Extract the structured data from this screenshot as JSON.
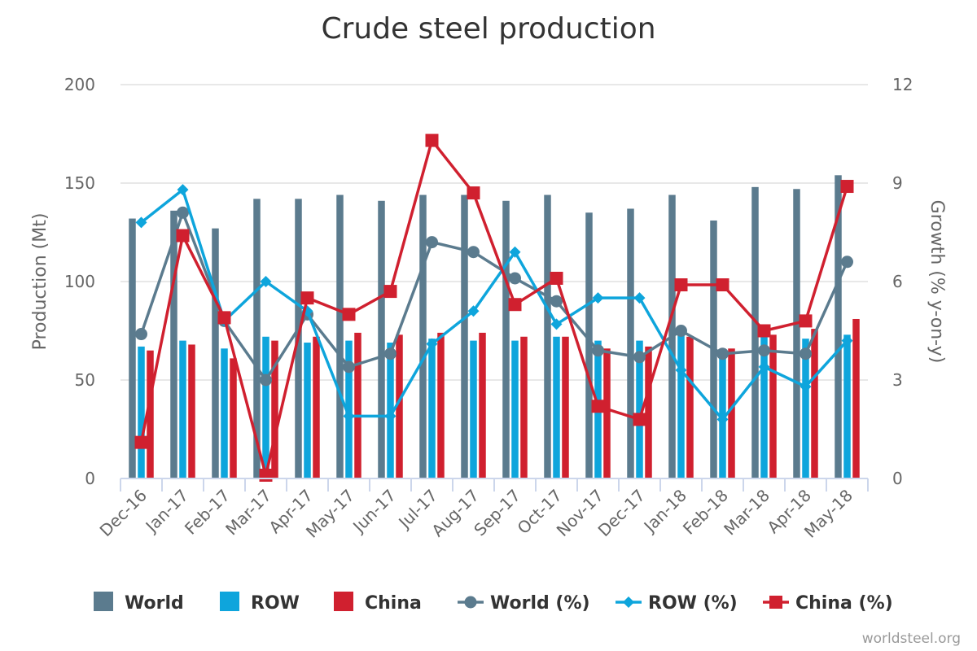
{
  "chart_data": {
    "type": "bar",
    "title": "Crude steel production",
    "categories": [
      "Dec-16",
      "Jan-17",
      "Feb-17",
      "Mar-17",
      "Apr-17",
      "May-17",
      "Jun-17",
      "Jul-17",
      "Aug-17",
      "Sep-17",
      "Oct-17",
      "Nov-17",
      "Dec-17",
      "Jan-18",
      "Feb-18",
      "Mar-18",
      "Apr-18",
      "May-18"
    ],
    "ylabel": "Production (Mt)",
    "y2label": "Growth (% y-on-y)",
    "ylim": [
      0,
      200
    ],
    "y2lim": [
      0,
      12
    ],
    "yticks": [
      "0",
      "50",
      "100",
      "150",
      "200"
    ],
    "y2ticks": [
      "0",
      "3",
      "6",
      "9",
      "12"
    ],
    "grid": true,
    "legend_position": "bottom",
    "series": [
      {
        "name": "World",
        "kind": "bar",
        "axis": "left",
        "color": "#5b7b8e",
        "values": [
          132,
          136,
          127,
          142,
          142,
          144,
          141,
          144,
          144,
          141,
          144,
          135,
          137,
          144,
          131,
          148,
          147,
          154
        ]
      },
      {
        "name": "ROW",
        "kind": "bar",
        "axis": "left",
        "color": "#0ea5dc",
        "values": [
          67,
          70,
          66,
          72,
          69,
          70,
          69,
          71,
          70,
          70,
          72,
          70,
          70,
          73,
          64,
          72,
          71,
          73
        ]
      },
      {
        "name": "China",
        "kind": "bar",
        "axis": "left",
        "color": "#d0202f",
        "values": [
          65,
          68,
          61,
          70,
          72,
          74,
          73,
          74,
          74,
          72,
          72,
          66,
          67,
          72,
          66,
          73,
          76,
          81
        ]
      },
      {
        "name": "World (%)",
        "kind": "line",
        "axis": "right",
        "color": "#5b7b8e",
        "marker": "circle",
        "values": [
          4.4,
          8.1,
          4.8,
          3.0,
          5.0,
          3.4,
          3.8,
          7.2,
          6.9,
          6.1,
          5.4,
          3.9,
          3.7,
          4.5,
          3.8,
          3.9,
          3.8,
          6.6
        ]
      },
      {
        "name": "ROW (%)",
        "kind": "line",
        "axis": "right",
        "color": "#0ea5dc",
        "marker": "diamond",
        "values": [
          7.8,
          8.8,
          4.8,
          6.0,
          5.1,
          1.9,
          1.9,
          4.1,
          5.1,
          6.9,
          4.7,
          5.5,
          5.5,
          3.3,
          1.8,
          3.4,
          2.8,
          4.2
        ]
      },
      {
        "name": "China (%)",
        "kind": "line",
        "axis": "right",
        "color": "#d0202f",
        "marker": "square",
        "values": [
          1.1,
          7.4,
          4.9,
          0.1,
          5.5,
          5.0,
          5.7,
          10.3,
          8.7,
          5.3,
          6.1,
          2.2,
          1.8,
          5.9,
          5.9,
          4.5,
          4.8,
          8.9
        ]
      }
    ],
    "credit": "worldsteel.org"
  }
}
